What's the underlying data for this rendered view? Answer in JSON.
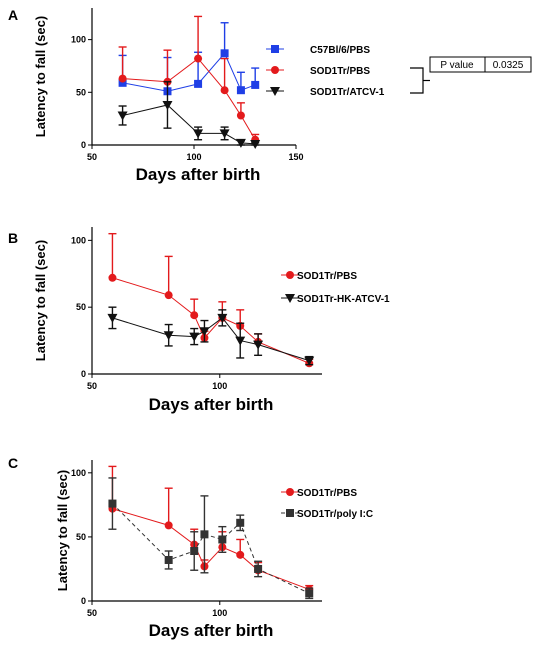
{
  "chart_data": [
    {
      "panel": "A",
      "type": "line",
      "xlabel": "Days after birth",
      "ylabel": "Latency to fall (sec)",
      "xlim": [
        50,
        150
      ],
      "ylim": [
        0,
        130
      ],
      "xticks": [
        50,
        100,
        150
      ],
      "yticks": [
        0,
        50,
        100
      ],
      "legend_position": "right",
      "series": [
        {
          "name": "C57Bl/6/PBS",
          "color": "#1f3fe6",
          "marker": "square",
          "dash": "",
          "x": [
            65,
            87,
            102,
            115,
            123,
            130
          ],
          "y": [
            59,
            51,
            58,
            87,
            52,
            57
          ],
          "err": [
            26,
            32,
            30,
            29,
            17,
            16
          ],
          "err_dir": "up"
        },
        {
          "name": "SOD1Tr/PBS",
          "color": "#e31a1c",
          "marker": "circle",
          "dash": "",
          "x": [
            65,
            87,
            102,
            115,
            123,
            130
          ],
          "y": [
            63,
            60,
            82,
            52,
            28,
            5
          ],
          "err": [
            30,
            30,
            40,
            30,
            12,
            5
          ],
          "err_dir": "up"
        },
        {
          "name": "SOD1Tr/ATCV-1",
          "color": "#111111",
          "marker": "triangle-down",
          "dash": "",
          "x": [
            65,
            87,
            102,
            115,
            123,
            130
          ],
          "y": [
            28,
            38,
            11,
            11,
            2,
            1
          ],
          "err": [
            9,
            22,
            6,
            6,
            2,
            1
          ],
          "err_dir": "both"
        }
      ],
      "annotation": {
        "label": "P value",
        "value": "0.0325"
      }
    },
    {
      "panel": "B",
      "type": "line",
      "xlabel": "Days after birth",
      "ylabel": "Latency to fall (sec)",
      "xlim": [
        50,
        140
      ],
      "ylim": [
        0,
        110
      ],
      "xticks": [
        50,
        100
      ],
      "yticks": [
        0,
        50,
        100
      ],
      "legend_position": "right",
      "series": [
        {
          "name": "SOD1Tr/PBS",
          "color": "#e31a1c",
          "marker": "circle",
          "dash": "",
          "x": [
            58,
            80,
            90,
            94,
            101,
            108,
            115,
            135
          ],
          "y": [
            72,
            59,
            44,
            27,
            42,
            36,
            24,
            8
          ],
          "err": [
            33,
            29,
            12,
            5,
            12,
            12,
            6,
            3
          ],
          "err_dir": "up"
        },
        {
          "name": "SOD1Tr-HK-ATCV-1",
          "color": "#111111",
          "marker": "triangle-down",
          "dash": "",
          "x": [
            58,
            80,
            90,
            94,
            101,
            108,
            115,
            135
          ],
          "y": [
            42,
            29,
            28,
            32,
            42,
            25,
            22,
            10
          ],
          "err": [
            8,
            8,
            6,
            8,
            6,
            13,
            8,
            3
          ],
          "err_dir": "both"
        }
      ]
    },
    {
      "panel": "C",
      "type": "line",
      "xlabel": "Days after birth",
      "ylabel": "Latency to fall (sec)",
      "xlim": [
        50,
        140
      ],
      "ylim": [
        0,
        110
      ],
      "xticks": [
        50,
        100
      ],
      "yticks": [
        0,
        50,
        100
      ],
      "legend_position": "right",
      "series": [
        {
          "name": "SOD1Tr/PBS",
          "color": "#e31a1c",
          "marker": "circle",
          "dash": "",
          "x": [
            58,
            80,
            90,
            94,
            101,
            108,
            115,
            135
          ],
          "y": [
            72,
            59,
            44,
            27,
            42,
            36,
            24,
            9
          ],
          "err": [
            33,
            29,
            12,
            5,
            12,
            12,
            6,
            3
          ],
          "err_dir": "up"
        },
        {
          "name": "SOD1Tr/poly I:C",
          "color": "#333333",
          "marker": "square",
          "dash": "4,3",
          "x": [
            58,
            80,
            90,
            94,
            101,
            108,
            115,
            135
          ],
          "y": [
            76,
            32,
            39,
            52,
            48,
            61,
            25,
            6
          ],
          "err": [
            20,
            7,
            15,
            30,
            10,
            6,
            6,
            4
          ],
          "err_dir": "both"
        }
      ]
    }
  ]
}
